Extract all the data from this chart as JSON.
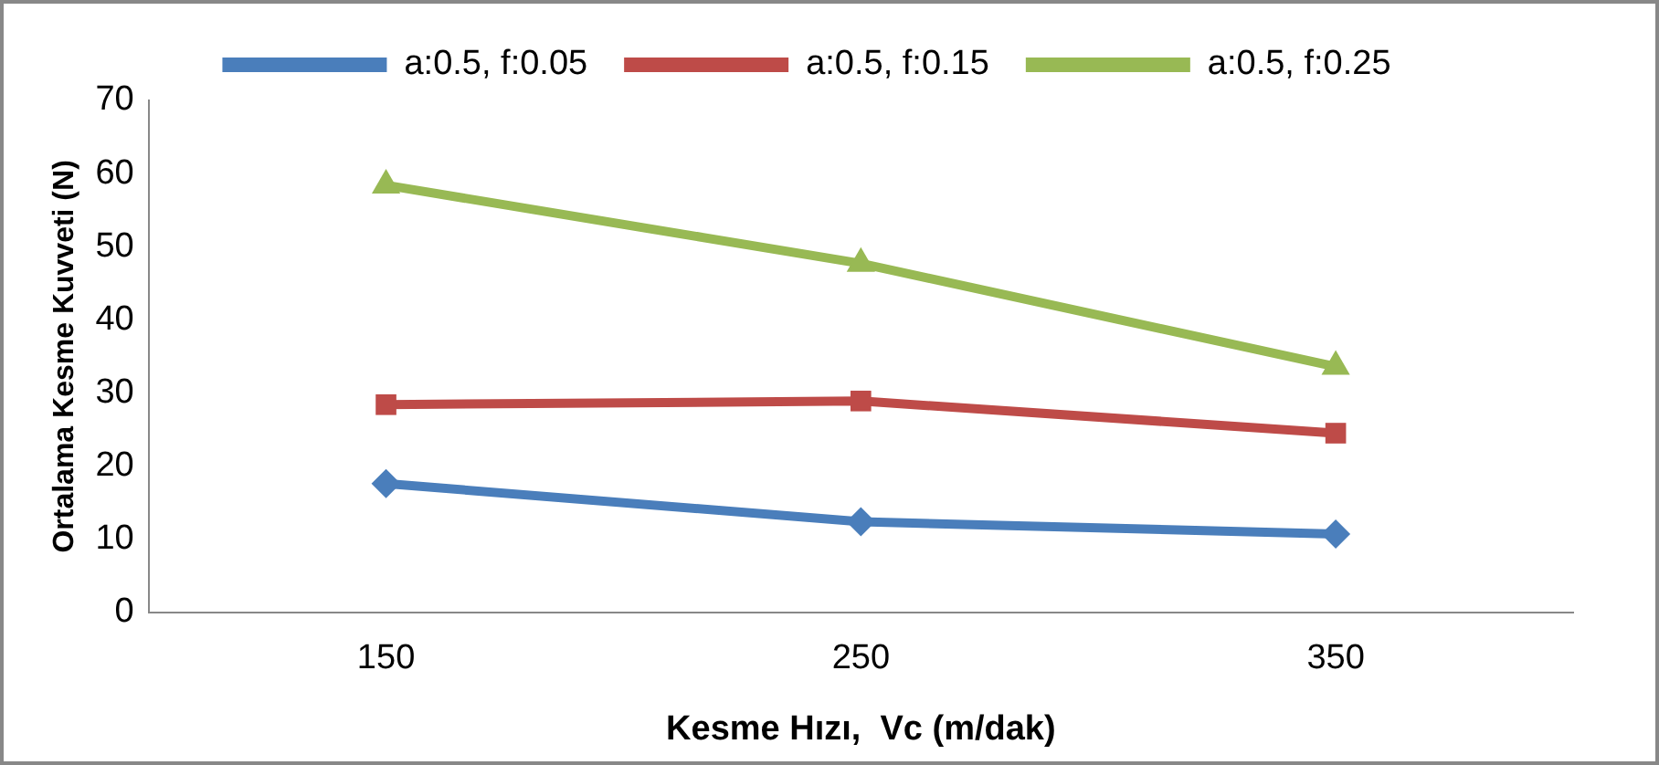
{
  "chart_data": {
    "type": "line",
    "xlabel": "Kesme Hızı,  Vc (m/dak)",
    "ylabel": "Ortalama Kesme Kuvveti (N)",
    "categories": [
      "150",
      "250",
      "350"
    ],
    "ylim": [
      0,
      70
    ],
    "yticks": [
      0,
      10,
      20,
      30,
      40,
      50,
      60,
      70
    ],
    "grid": false,
    "legend": "top",
    "line_style": "solid",
    "series": [
      {
        "name": "a:0.5, f:0.05",
        "color": "#4a7ebb",
        "marker": "diamond",
        "values": [
          17.6,
          12.4,
          10.7
        ]
      },
      {
        "name": "a:0.5, f:0.15",
        "color": "#be4b48",
        "marker": "square",
        "values": [
          28.4,
          28.9,
          24.5
        ]
      },
      {
        "name": "a:0.5, f:0.25",
        "color": "#98b954",
        "marker": "triangle",
        "values": [
          58.4,
          47.7,
          33.6
        ]
      }
    ]
  }
}
